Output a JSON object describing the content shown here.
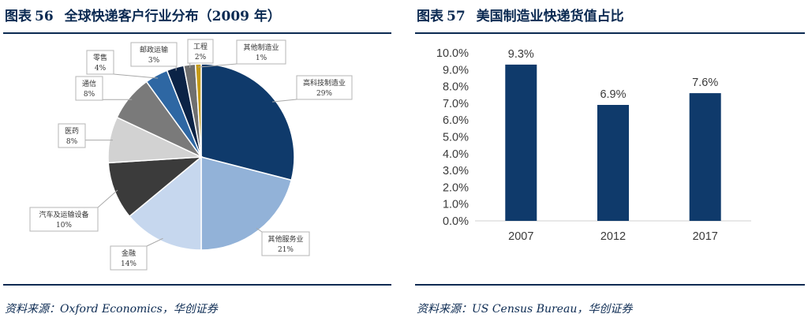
{
  "figures": [
    {
      "label": "图表",
      "number": "56",
      "title": "全球快递客户行业分布（2009 年）",
      "source": "资料来源：Oxford Economics，华创证券"
    },
    {
      "label": "图表",
      "number": "57",
      "title": "美国制造业快递货值占比",
      "source": "资料来源：US Census Bureau，华创证券"
    }
  ],
  "chart_data": [
    {
      "type": "pie",
      "title": "全球快递客户行业分布（2009 年）",
      "start": "12 o'clock, clockwise",
      "slices": [
        {
          "label": "高科技制造业",
          "value": 29,
          "value_label": "29%",
          "color": "#0f3a6b"
        },
        {
          "label": "其他服务业",
          "value": 21,
          "value_label": "21%",
          "color": "#92b2d8"
        },
        {
          "label": "金融",
          "value": 14,
          "value_label": "14%",
          "color": "#c6d7ee"
        },
        {
          "label": "汽车及运输设备",
          "value": 10,
          "value_label": "10%",
          "color": "#3b3b3b"
        },
        {
          "label": "医药",
          "value": 8,
          "value_label": "8%",
          "color": "#d2d2d2"
        },
        {
          "label": "通信",
          "value": 8,
          "value_label": "8%",
          "color": "#7a7a7a"
        },
        {
          "label": "零售",
          "value": 4,
          "value_label": "4%",
          "color": "#2e67a3"
        },
        {
          "label": "邮政运输",
          "value": 3,
          "value_label": "3%",
          "color": "#0b2346"
        },
        {
          "label": "工程",
          "value": 2,
          "value_label": "2%",
          "color": "#6f6f6f"
        },
        {
          "label": "其他制造业",
          "value": 1,
          "value_label": "1%",
          "color": "#c49a18"
        }
      ]
    },
    {
      "type": "bar",
      "title": "美国制造业快递货值占比",
      "categories": [
        "2007",
        "2012",
        "2017"
      ],
      "values": [
        9.3,
        6.9,
        7.6
      ],
      "value_labels": [
        "9.3%",
        "6.9%",
        "7.6%"
      ],
      "ylim": [
        0,
        10
      ],
      "yticks": [
        0,
        1,
        2,
        3,
        4,
        5,
        6,
        7,
        8,
        9,
        10
      ],
      "ytick_labels": [
        "0.0%",
        "1.0%",
        "2.0%",
        "3.0%",
        "4.0%",
        "5.0%",
        "6.0%",
        "7.0%",
        "8.0%",
        "9.0%",
        "10.0%"
      ],
      "bar_color": "#0f3a6b",
      "grid": false,
      "legend": "none"
    }
  ]
}
